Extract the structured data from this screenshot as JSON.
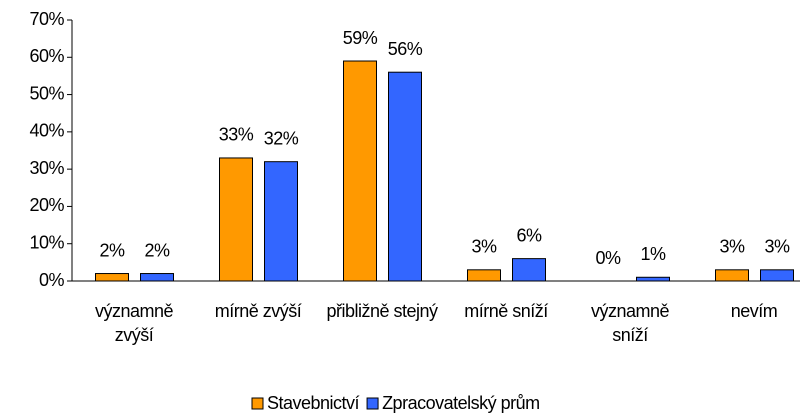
{
  "chart_data": {
    "type": "bar",
    "categories": [
      "významně zvýší",
      "mírně zvýší",
      "přibližně stejný",
      "mírně sníží",
      "významně sníží",
      "nevím"
    ],
    "series": [
      {
        "name": "Stavebnictví",
        "color": "#FF9900",
        "values": [
          2,
          33,
          59,
          3,
          0,
          3
        ],
        "value_labels": [
          "2%",
          "33%",
          "59%",
          "3%",
          "0%",
          "3%"
        ]
      },
      {
        "name": "Zpracovatelský prům",
        "color": "#3366FF",
        "values": [
          2,
          32,
          56,
          6,
          1,
          3
        ],
        "value_labels": [
          "2%",
          "32%",
          "56%",
          "6%",
          "1%",
          "3%"
        ]
      }
    ],
    "ylim": [
      0,
      70
    ],
    "yticks": [
      {
        "value": 0,
        "label": "0%"
      },
      {
        "value": 10,
        "label": "10%"
      },
      {
        "value": 20,
        "label": "20%"
      },
      {
        "value": 30,
        "label": "30%"
      },
      {
        "value": 40,
        "label": "40%"
      },
      {
        "value": 50,
        "label": "50%"
      },
      {
        "value": 60,
        "label": "60%"
      },
      {
        "value": 70,
        "label": "70%"
      }
    ],
    "legend": "bottom"
  }
}
